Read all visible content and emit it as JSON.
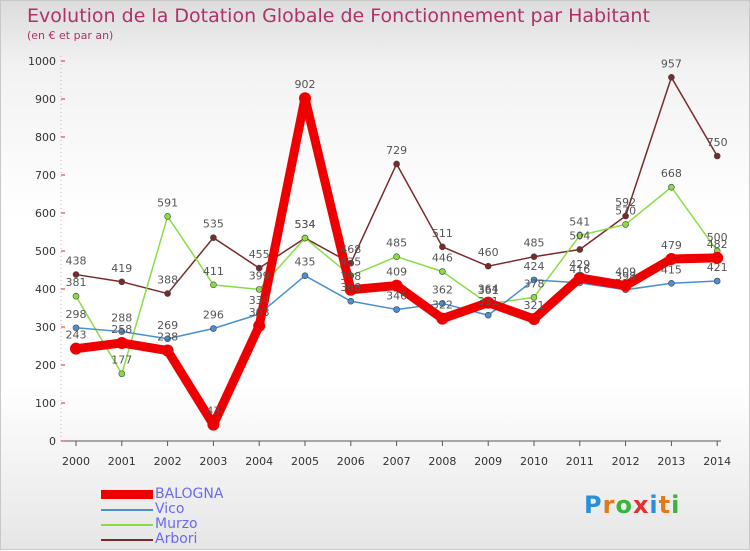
{
  "title": "Evolution de la Dotation Globale de Fonctionnement par Habitant",
  "subtitle": "(en € et par an)",
  "logo": {
    "text": "Proxiti",
    "colors": [
      "#2a8fd8",
      "#e07a1a",
      "#3cb33c",
      "#e03030",
      "#2a8fd8",
      "#e07a1a",
      "#3cb33c"
    ]
  },
  "chart_data": {
    "type": "line",
    "x": [
      "2000",
      "2001",
      "2002",
      "2003",
      "2004",
      "2005",
      "2006",
      "2007",
      "2008",
      "2009",
      "2010",
      "2011",
      "2012",
      "2013",
      "2014"
    ],
    "ylim": [
      0,
      1000
    ],
    "yticks": [
      "0",
      "100",
      "200",
      "300",
      "400",
      "500",
      "600",
      "700",
      "800",
      "900",
      "1000"
    ],
    "grid": false,
    "legend": "bottom-left",
    "series": [
      {
        "name": "BALOGNA",
        "color": "#ee0000",
        "width": 9,
        "values": [
          243,
          258,
          238,
          43,
          303,
          902,
          398,
          409,
          322,
          364,
          321,
          429,
          409,
          479,
          482
        ],
        "labels": [
          "243",
          "258",
          "238",
          "43",
          "303",
          "902",
          "398",
          "409",
          "322",
          "364",
          "321",
          "429",
          "409",
          "479",
          "482"
        ]
      },
      {
        "name": "Vico",
        "color": "#4a8fd0",
        "width": 1.5,
        "values": [
          298,
          288,
          269,
          296,
          334,
          435,
          368,
          346,
          362,
          331,
          424,
          416,
          398,
          415,
          421
        ],
        "labels": [
          "298",
          "288",
          "269",
          "296",
          "334",
          "435",
          "368",
          "346",
          "362",
          "331",
          "424",
          "416",
          "398",
          "415",
          "421"
        ]
      },
      {
        "name": "Murzo",
        "color": "#88dd44",
        "width": 1.5,
        "values": [
          381,
          177,
          591,
          411,
          399,
          534,
          435,
          485,
          446,
          361,
          378,
          541,
          570,
          668,
          500
        ],
        "labels": [
          "381",
          "177",
          "591",
          "411",
          "399",
          "534",
          "435",
          "485",
          "446",
          "361",
          "378",
          "541",
          "570",
          "668",
          "500"
        ]
      },
      {
        "name": "Arbori",
        "color": "#7a2a2a",
        "width": 1.5,
        "values": [
          438,
          419,
          388,
          535,
          455,
          534,
          468,
          729,
          511,
          460,
          485,
          504,
          592,
          957,
          750
        ],
        "labels": [
          "438",
          "419",
          "388",
          "535",
          "455",
          "534",
          "468",
          "729",
          "511",
          "460",
          "485",
          "504",
          "592",
          "957",
          "750"
        ]
      }
    ]
  }
}
